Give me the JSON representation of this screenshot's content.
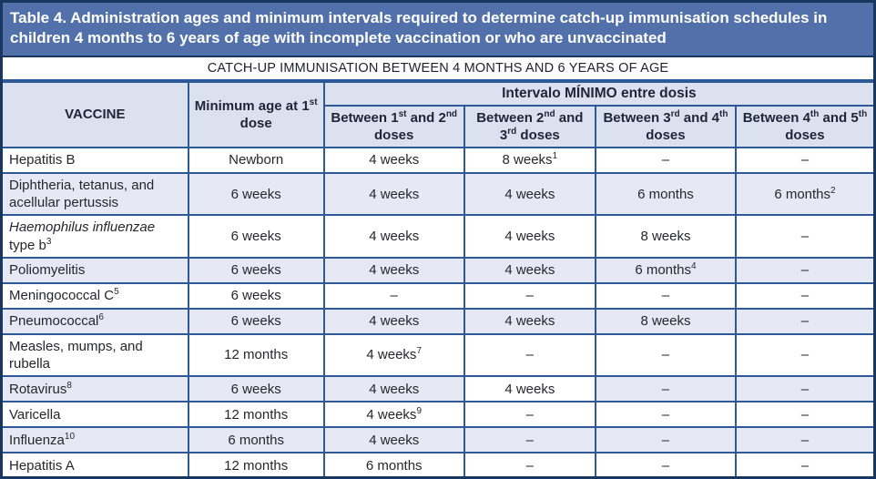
{
  "title": "Table 4. Administration ages and minimum intervals required to determine catch-up immunisation schedules in children 4 months to 6 years of age with incomplete vaccination or who are unvaccinated",
  "subheader": "CATCH-UP IMMUNISATION BETWEEN 4 MONTHS AND 6 YEARS OF AGE",
  "table": {
    "col_headers": {
      "vaccine": "VACCINE",
      "min_age": "Minimum age at 1^st dose",
      "interval_group": "Intervalo MÍNIMO entre dosis",
      "intervals": [
        "Between 1^st and 2^nd doses",
        "Between 2^nd and 3^rd doses",
        "Between 3^rd and 4^th doses",
        "Between 4^th and 5^th doses"
      ]
    },
    "rows": [
      {
        "vaccine": "Hepatitis B",
        "min_age": "Newborn",
        "intervals": [
          "4 weeks",
          "8 weeks^1",
          "–",
          "–"
        ],
        "shaded": false
      },
      {
        "vaccine": "Diphtheria, tetanus, and acellular pertussis",
        "min_age": "6 weeks",
        "intervals": [
          "4 weeks",
          "4 weeks",
          "6 months",
          "6 months^2"
        ],
        "shaded": true
      },
      {
        "vaccine": "*Haemophilus influenzae* type b^3",
        "min_age": "6 weeks",
        "intervals": [
          "4 weeks",
          "4 weeks",
          "8 weeks",
          "–"
        ],
        "shaded": false
      },
      {
        "vaccine": "Poliomyelitis",
        "min_age": "6 weeks",
        "intervals": [
          "4 weeks",
          "4 weeks",
          "6 months^4",
          "–"
        ],
        "shaded": true
      },
      {
        "vaccine": "Meningococcal C^5",
        "min_age": "6 weeks",
        "intervals": [
          "–",
          "–",
          "–",
          "–"
        ],
        "shaded": false
      },
      {
        "vaccine": "Pneumococcal^6",
        "min_age": "6 weeks",
        "intervals": [
          "4 weeks",
          "4 weeks",
          "8 weeks",
          "–"
        ],
        "shaded": true
      },
      {
        "vaccine": "Measles, mumps, and rubella",
        "min_age": "12 months",
        "intervals": [
          "4 weeks^7",
          "–",
          "–",
          "–"
        ],
        "shaded": false
      },
      {
        "vaccine": "Rotavirus^8",
        "min_age": "6 weeks",
        "intervals": [
          "4 weeks",
          "4 weeks",
          "–",
          "–"
        ],
        "shaded": true,
        "white_cells": [
          1
        ]
      },
      {
        "vaccine": "Varicella",
        "min_age": "12 months",
        "intervals": [
          "4 weeks^9",
          "–",
          "–",
          "–"
        ],
        "shaded": false
      },
      {
        "vaccine": "Influenza^10",
        "min_age": "6 months",
        "intervals": [
          "4 weeks",
          "–",
          "–",
          "–"
        ],
        "shaded": true
      },
      {
        "vaccine": "Hepatitis A",
        "min_age": "12 months",
        "intervals": [
          "6 months",
          "–",
          "–",
          "–"
        ],
        "shaded": false
      }
    ]
  },
  "colors": {
    "title_bar_bg": "#5271ab",
    "outer_border": "#17375e",
    "grid_line": "#2d5a96",
    "header_cell_bg": "#dbe1ef",
    "shaded_row_bg": "#e6e8f4",
    "white_row_bg": "#ffffff",
    "title_text": "#ffffff",
    "body_text": "#26262e"
  }
}
